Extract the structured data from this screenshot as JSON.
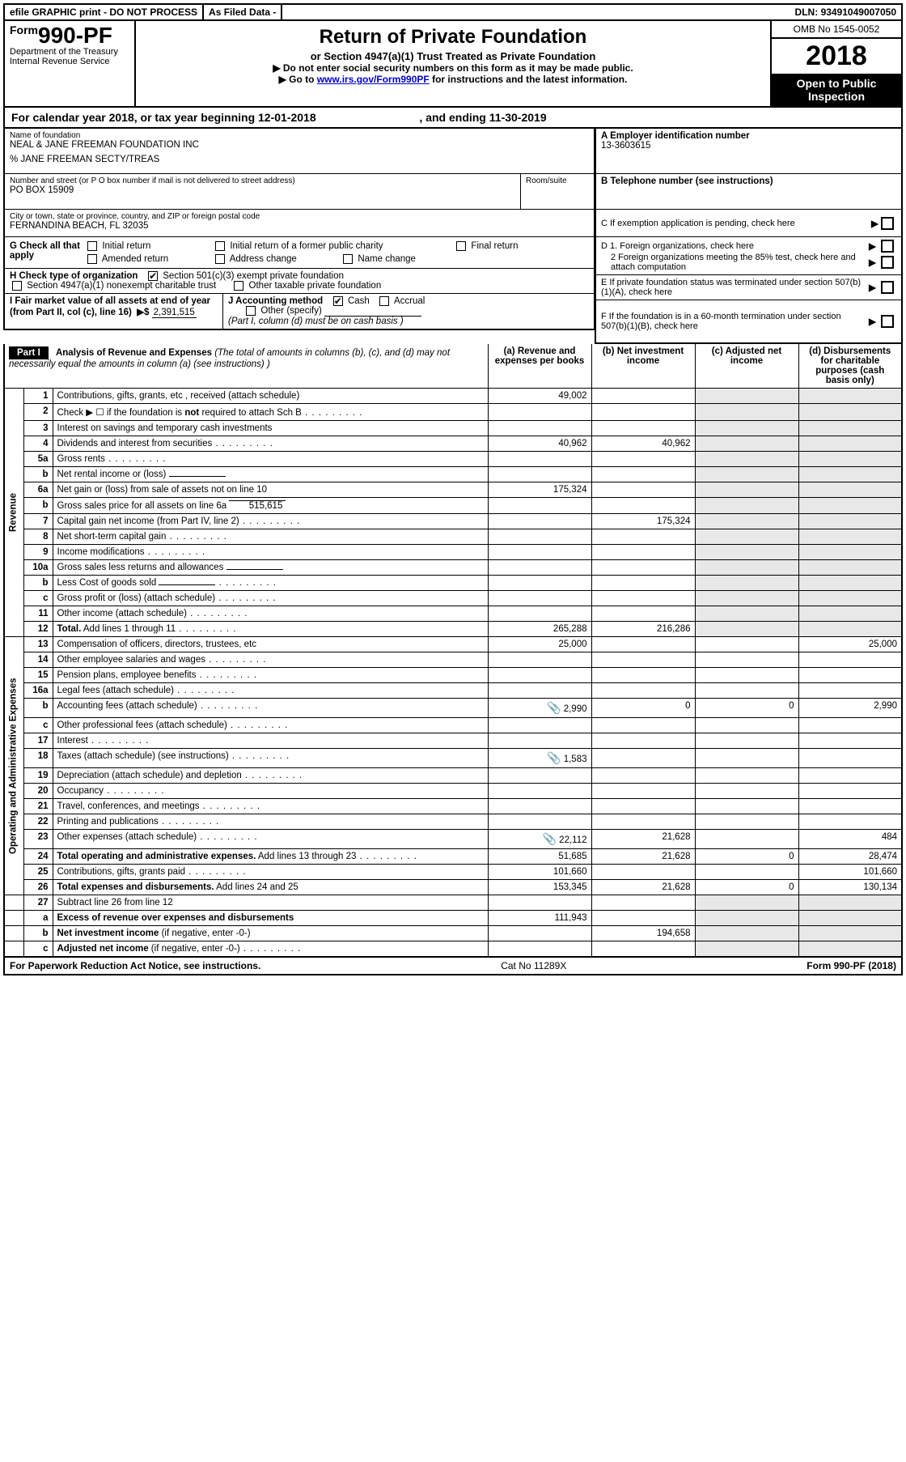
{
  "topbar": {
    "efile": "efile GRAPHIC print - DO NOT PROCESS",
    "asfiled": "As Filed Data -",
    "dln_lbl": "DLN:",
    "dln": "93491049007050"
  },
  "header": {
    "form_prefix": "Form",
    "form_number": "990-PF",
    "dept": "Department of the Treasury",
    "irs": "Internal Revenue Service",
    "title": "Return of Private Foundation",
    "subtitle": "or Section 4947(a)(1) Trust Treated as Private Foundation",
    "warn": "▶ Do not enter social security numbers on this form as it may be made public.",
    "goto_pre": "▶ Go to ",
    "goto_link": "www.irs.gov/Form990PF",
    "goto_post": " for instructions and the latest information.",
    "omb": "OMB No  1545-0052",
    "year": "2018",
    "inspect1": "Open to Public",
    "inspect2": "Inspection"
  },
  "calyear": {
    "pre": "For calendar year 2018, or tax year beginning ",
    "begin": "12-01-2018",
    "mid": ", and ending ",
    "end": "11-30-2019"
  },
  "id": {
    "name_lbl": "Name of foundation",
    "name": "NEAL & JANE FREEMAN FOUNDATION INC",
    "name2": "% JANE FREEMAN SECTY/TREAS",
    "addr_lbl": "Number and street (or P O  box number if mail is not delivered to street address)",
    "room_lbl": "Room/suite",
    "addr": "PO BOX 15909",
    "city_lbl": "City or town, state or province, country, and ZIP or foreign postal code",
    "city": "FERNANDINA BEACH, FL  32035",
    "a_lbl": "A Employer identification number",
    "ein": "13-3603615",
    "b_lbl": "B Telephone number (see instructions)",
    "c_lbl": "C  If exemption application is pending, check here",
    "d1": "D 1. Foreign organizations, check here",
    "d2": "2  Foreign organizations meeting the 85% test, check here and attach computation",
    "e": "E  If private foundation status was terminated under section 507(b)(1)(A), check here",
    "f": "F  If the foundation is in a 60-month termination under section 507(b)(1)(B), check here"
  },
  "g": {
    "lbl": "G Check all that apply",
    "opts": [
      "Initial return",
      "Initial return of a former public charity",
      "Final return",
      "Amended return",
      "Address change",
      "Name change"
    ]
  },
  "h": {
    "lbl": "H Check type of organization",
    "o1": "Section 501(c)(3) exempt private foundation",
    "o2": "Section 4947(a)(1) nonexempt charitable trust",
    "o3": "Other taxable private foundation"
  },
  "i": {
    "lbl": "I Fair market value of all assets at end of year (from Part II, col  (c), line 16)",
    "val": "2,391,515",
    "arrow": "▶$"
  },
  "j": {
    "lbl": "J Accounting method",
    "cash": "Cash",
    "accr": "Accrual",
    "other": "Other (specify)",
    "note": "(Part I, column (d) must be on cash basis )"
  },
  "part1": {
    "tag": "Part I",
    "title": "Analysis of Revenue and Expenses",
    "sub": "(The total of amounts in columns (b), (c), and (d) may not necessarily equal the amounts in column (a) (see instructions) )",
    "cols": {
      "a": "(a)  Revenue and expenses per books",
      "b": "(b)  Net investment income",
      "c": "(c)  Adjusted net income",
      "d": "(d)  Disbursements for charitable purposes (cash basis only)"
    }
  },
  "sides": {
    "rev": "Revenue",
    "exp": "Operating and Administrative Expenses"
  },
  "rows": [
    {
      "side": "rev",
      "n": "1",
      "d": "Contributions, gifts, grants, etc , received (attach schedule)",
      "a": "49,002"
    },
    {
      "side": "rev",
      "n": "2",
      "d": "Check ▶ ☐ if the foundation is <b>not</b> required to attach Sch  B",
      "dots": true
    },
    {
      "side": "rev",
      "n": "3",
      "d": "Interest on savings and temporary cash investments"
    },
    {
      "side": "rev",
      "n": "4",
      "d": "Dividends and interest from securities",
      "dots": true,
      "a": "40,962",
      "b": "40,962"
    },
    {
      "side": "rev",
      "n": "5a",
      "d": "Gross rents",
      "dots": true
    },
    {
      "side": "rev",
      "n": "b",
      "d": "Net rental income or (loss)",
      "inline": true
    },
    {
      "side": "rev",
      "n": "6a",
      "d": "Net gain or (loss) from sale of assets not on line 10",
      "a": "175,324"
    },
    {
      "side": "rev",
      "n": "b",
      "d": "Gross sales price for all assets on line 6a",
      "inline": true,
      "inline_val": "515,615"
    },
    {
      "side": "rev",
      "n": "7",
      "d": "Capital gain net income (from Part IV, line 2)",
      "dots": true,
      "b": "175,324"
    },
    {
      "side": "rev",
      "n": "8",
      "d": "Net short-term capital gain",
      "dots": true
    },
    {
      "side": "rev",
      "n": "9",
      "d": "Income modifications",
      "dots": true
    },
    {
      "side": "rev",
      "n": "10a",
      "d": "Gross sales less returns and allowances",
      "inline": true
    },
    {
      "side": "rev",
      "n": "b",
      "d": "Less  Cost of goods sold",
      "dots": true,
      "inline": true
    },
    {
      "side": "rev",
      "n": "c",
      "d": "Gross profit or (loss) (attach schedule)",
      "dots": true
    },
    {
      "side": "rev",
      "n": "11",
      "d": "Other income (attach schedule)",
      "dots": true
    },
    {
      "side": "rev",
      "n": "12",
      "d": "<b>Total.</b> Add lines 1 through 11",
      "dots": true,
      "a": "265,288",
      "b": "216,286"
    },
    {
      "side": "exp",
      "n": "13",
      "d": "Compensation of officers, directors, trustees, etc",
      "a": "25,000",
      "dd": "25,000"
    },
    {
      "side": "exp",
      "n": "14",
      "d": "Other employee salaries and wages",
      "dots": true
    },
    {
      "side": "exp",
      "n": "15",
      "d": "Pension plans, employee benefits",
      "dots": true
    },
    {
      "side": "exp",
      "n": "16a",
      "d": "Legal fees (attach schedule)",
      "dots": true
    },
    {
      "side": "exp",
      "n": "b",
      "d": "Accounting fees (attach schedule)",
      "dots": true,
      "clip": true,
      "a": "2,990",
      "b": "0",
      "c": "0",
      "dd": "2,990"
    },
    {
      "side": "exp",
      "n": "c",
      "d": "Other professional fees (attach schedule)",
      "dots": true
    },
    {
      "side": "exp",
      "n": "17",
      "d": "Interest",
      "dots": true
    },
    {
      "side": "exp",
      "n": "18",
      "d": "Taxes (attach schedule) (see instructions)",
      "dots": true,
      "clip": true,
      "a": "1,583"
    },
    {
      "side": "exp",
      "n": "19",
      "d": "Depreciation (attach schedule) and depletion",
      "dots": true
    },
    {
      "side": "exp",
      "n": "20",
      "d": "Occupancy",
      "dots": true
    },
    {
      "side": "exp",
      "n": "21",
      "d": "Travel, conferences, and meetings",
      "dots": true
    },
    {
      "side": "exp",
      "n": "22",
      "d": "Printing and publications",
      "dots": true
    },
    {
      "side": "exp",
      "n": "23",
      "d": "Other expenses (attach schedule)",
      "dots": true,
      "clip": true,
      "a": "22,112",
      "b": "21,628",
      "dd": "484"
    },
    {
      "side": "exp",
      "n": "24",
      "d": "<b>Total operating and administrative expenses.</b> Add lines 13 through 23",
      "dots": true,
      "a": "51,685",
      "b": "21,628",
      "c": "0",
      "dd": "28,474"
    },
    {
      "side": "exp",
      "n": "25",
      "d": "Contributions, gifts, grants paid",
      "dots": true,
      "a": "101,660",
      "dd": "101,660"
    },
    {
      "side": "exp",
      "n": "26",
      "d": "<b>Total expenses and disbursements.</b> Add lines 24 and 25",
      "a": "153,345",
      "b": "21,628",
      "c": "0",
      "dd": "130,134"
    },
    {
      "side": "none",
      "n": "27",
      "d": "Subtract line 26 from line 12"
    },
    {
      "side": "none",
      "n": "a",
      "d": "<b>Excess of revenue over expenses and disbursements</b>",
      "a": "111,943"
    },
    {
      "side": "none",
      "n": "b",
      "d": "<b>Net investment income</b> (if negative, enter -0-)",
      "b": "194,658"
    },
    {
      "side": "none",
      "n": "c",
      "d": "<b>Adjusted net income</b> (if negative, enter -0-)",
      "dots": true
    }
  ],
  "footer": {
    "pra": "For Paperwork Reduction Act Notice, see instructions.",
    "cat": "Cat  No  11289X",
    "form": "Form 990-PF (2018)"
  },
  "colors": {
    "black": "#000000",
    "link": "#0000cc",
    "shade": "#e8e8e8"
  }
}
